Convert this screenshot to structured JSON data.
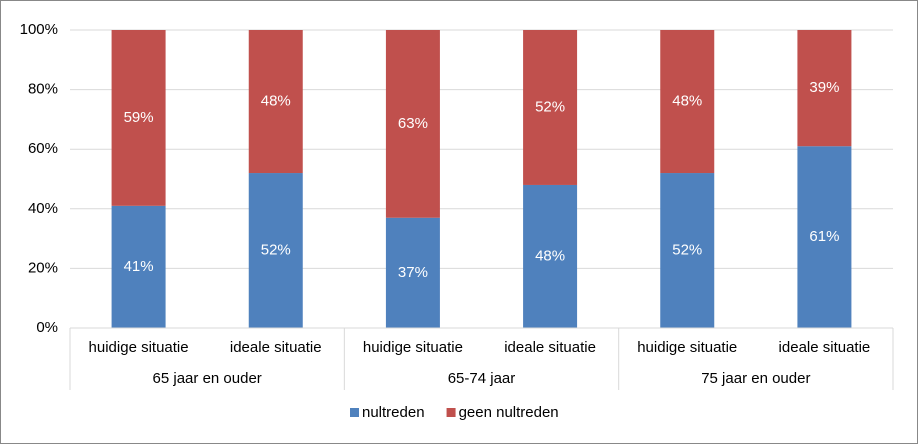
{
  "chart_data": {
    "type": "stacked_bar",
    "categories": [
      "huidige situatie",
      "ideale situatie",
      "huidige situatie",
      "ideale situatie",
      "huidige situatie",
      "ideale situatie"
    ],
    "groups": [
      "65 jaar en ouder",
      "65-74 jaar",
      "75 jaar en ouder"
    ],
    "series": [
      {
        "name": "nultreden",
        "color": "#4f81bd",
        "values": [
          41,
          52,
          37,
          48,
          52,
          61
        ],
        "value_labels": [
          "41%",
          "52%",
          "37%",
          "48%",
          "52%",
          "61%"
        ]
      },
      {
        "name": "geen nultreden",
        "color": "#c0504d",
        "values": [
          59,
          48,
          63,
          52,
          48,
          39
        ],
        "value_labels": [
          "59%",
          "48%",
          "63%",
          "52%",
          "48%",
          "39%"
        ]
      }
    ],
    "ylim": [
      0,
      100
    ],
    "yticks": [
      {
        "value": 0,
        "label": "0%"
      },
      {
        "value": 20,
        "label": "20%"
      },
      {
        "value": 40,
        "label": "40%"
      },
      {
        "value": 60,
        "label": "60%"
      },
      {
        "value": 80,
        "label": "80%"
      },
      {
        "value": 100,
        "label": "100%"
      }
    ],
    "grid": true,
    "legend": "bottom"
  }
}
